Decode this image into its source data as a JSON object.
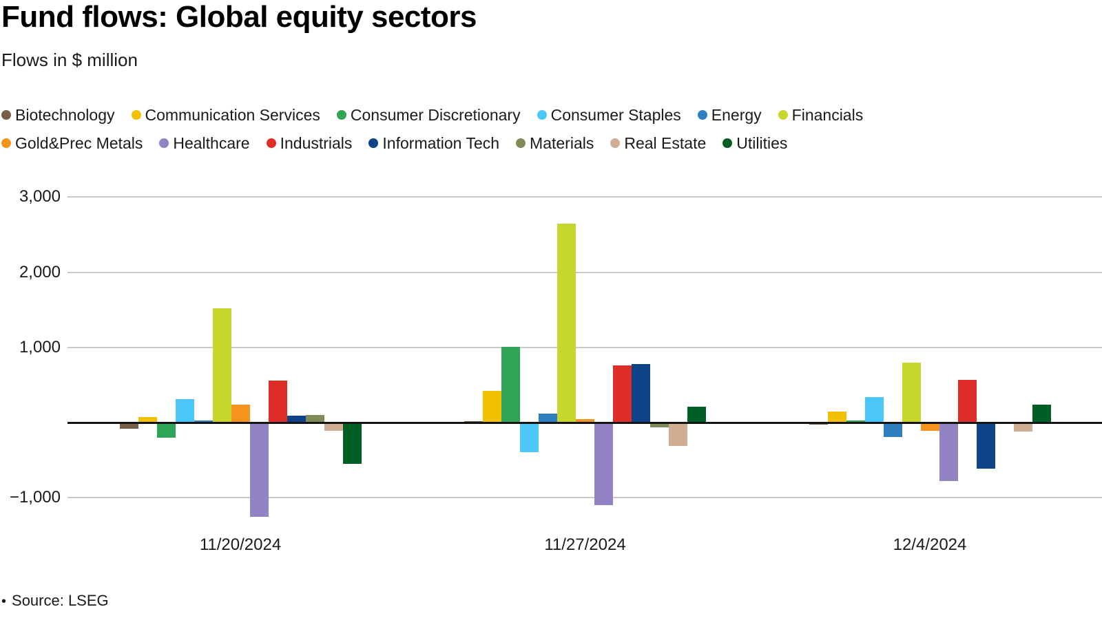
{
  "header": {
    "title": "Fund flows: Global equity sectors",
    "subtitle": "Flows in $ million"
  },
  "footer": {
    "bullet": "•",
    "source": "Source: LSEG"
  },
  "chart_data": {
    "type": "bar",
    "title": "Fund flows: Global equity sectors",
    "subtitle": "Flows in $ million",
    "unit": "$ million",
    "categories": [
      "11/20/2024",
      "11/27/2024",
      "12/4/2024"
    ],
    "series": [
      {
        "name": "Biotechnology",
        "color": "#7a5f48",
        "values": [
          -80,
          20,
          -25
        ]
      },
      {
        "name": "Communication Services",
        "color": "#f1c001",
        "values": [
          70,
          420,
          145
        ]
      },
      {
        "name": "Consumer Discretionary",
        "color": "#2fa457",
        "values": [
          -200,
          1005,
          25
        ]
      },
      {
        "name": "Consumer Staples",
        "color": "#4cc7fa",
        "values": [
          315,
          -390,
          335
        ]
      },
      {
        "name": "Energy",
        "color": "#2e7fc2",
        "values": [
          30,
          120,
          -190
        ]
      },
      {
        "name": "Financials",
        "color": "#c7d62d",
        "values": [
          1520,
          2650,
          800
        ]
      },
      {
        "name": "Gold&Prec Metals",
        "color": "#f7941e",
        "values": [
          235,
          45,
          -110
        ]
      },
      {
        "name": "Healthcare",
        "color": "#9283c4",
        "values": [
          -1250,
          -1100,
          -780
        ]
      },
      {
        "name": "Industrials",
        "color": "#de2d26",
        "values": [
          560,
          760,
          565
        ]
      },
      {
        "name": "Information Tech",
        "color": "#0d4387",
        "values": [
          90,
          775,
          -615
        ]
      },
      {
        "name": "Materials",
        "color": "#7f8c5a",
        "values": [
          100,
          -60,
          0
        ]
      },
      {
        "name": "Real Estate",
        "color": "#cfae94",
        "values": [
          -110,
          -310,
          -115
        ]
      },
      {
        "name": "Utilities",
        "color": "#015e24",
        "values": [
          -550,
          210,
          235
        ]
      }
    ],
    "y_axis": {
      "ticks": [
        {
          "value": 3000,
          "label": "3,000"
        },
        {
          "value": 2000,
          "label": "2,000"
        },
        {
          "value": 1000,
          "label": "1,000"
        },
        {
          "value": 0,
          "label": ""
        },
        {
          "value": -1000,
          "label": "−1,000"
        }
      ],
      "range": [
        -1340,
        3150
      ],
      "grid": true
    },
    "legend_position": "top",
    "source": "Source: LSEG",
    "colors": {
      "gridline": "#c9c9c9",
      "zero_axis": "#141414",
      "text": "#1a1a1a"
    }
  }
}
